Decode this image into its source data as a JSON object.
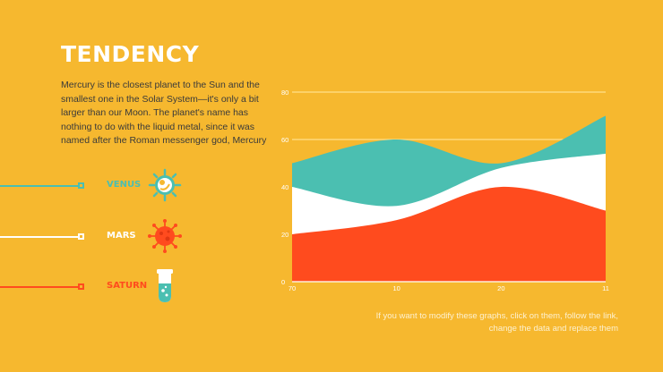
{
  "slide": {
    "title": "TENDENCY",
    "description": "Mercury is the closest planet to the Sun and the smallest one in the Solar System—it's only a bit larger than our Moon. The planet's name has nothing to do with the liquid metal, since it was named after the Roman messenger god, Mercury",
    "footnote": "If you want to modify these graphs, click on them, follow the link, change the data and replace them"
  },
  "legend": [
    {
      "label": "VENUS",
      "color": "#4bbfb1",
      "icon": "venus-planet-icon"
    },
    {
      "label": "MARS",
      "color": "#ffffff",
      "icon": "mars-virus-icon"
    },
    {
      "label": "SATURN",
      "color": "#ff4b1e",
      "icon": "saturn-test-tube-icon"
    }
  ],
  "chart_data": {
    "type": "area",
    "stacked": false,
    "x": [
      "70",
      "10",
      "20",
      "11"
    ],
    "yticks": [
      "0",
      "20",
      "40",
      "60",
      "80"
    ],
    "ylim": [
      0,
      80
    ],
    "grid": true,
    "series": [
      {
        "color": "#4bbfb1",
        "values": [
          50,
          60,
          50,
          70
        ]
      },
      {
        "color": "#ffffff",
        "values": [
          40,
          32,
          48,
          54
        ]
      },
      {
        "color": "#ff4b1e",
        "values": [
          20,
          26,
          40,
          30
        ]
      }
    ]
  }
}
